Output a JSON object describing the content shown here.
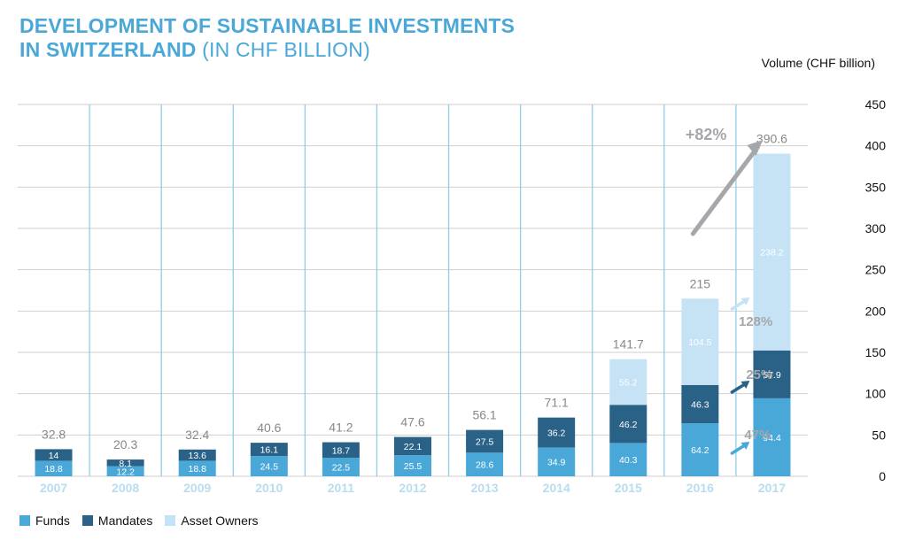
{
  "title": {
    "line1": "DEVELOPMENT OF SUSTAINABLE INVESTMENTS",
    "line2_bold": "IN SWITZERLAND",
    "line2_light": " (IN CHF BILLION)"
  },
  "chart_data": {
    "type": "bar",
    "stacked": true,
    "title": "DEVELOPMENT OF SUSTAINABLE INVESTMENTS IN SWITZERLAND (IN CHF BILLION)",
    "ylabel": "Volume (CHF billion)",
    "ylim": [
      0,
      450
    ],
    "yticks": [
      0,
      50,
      100,
      150,
      200,
      250,
      300,
      350,
      400,
      450
    ],
    "y_axis_side": "right",
    "grid": true,
    "legend_position": "bottom-left",
    "categories": [
      "2007",
      "2008",
      "2009",
      "2010",
      "2011",
      "2012",
      "2013",
      "2014",
      "2015",
      "2016",
      "2017"
    ],
    "series": [
      {
        "name": "Funds",
        "color": "#4aa8d8",
        "values": [
          18.8,
          12.2,
          18.8,
          24.5,
          22.5,
          25.5,
          28.6,
          34.9,
          40.3,
          64.2,
          94.4
        ]
      },
      {
        "name": "Mandates",
        "color": "#2a6287",
        "values": [
          14,
          8.1,
          13.6,
          16.1,
          18.7,
          22.1,
          27.5,
          36.2,
          46.2,
          46.3,
          57.9
        ]
      },
      {
        "name": "Asset Owners",
        "color": "#c6e3f5",
        "values": [
          null,
          null,
          null,
          null,
          null,
          null,
          null,
          null,
          55.2,
          104.5,
          238.2
        ]
      }
    ],
    "totals": [
      "32.8",
      "20.3",
      "32.4",
      "40.6",
      "41.2",
      "47.6",
      "56.1",
      "71.1",
      "141.7",
      "215",
      "390.6"
    ],
    "annotations": [
      {
        "text": "+82%",
        "from": "2016",
        "to": "2017",
        "target": "total"
      },
      {
        "text": "128%",
        "target": "Asset Owners"
      },
      {
        "text": "25%",
        "target": "Mandates"
      },
      {
        "text": "47%",
        "target": "Funds"
      }
    ]
  }
}
